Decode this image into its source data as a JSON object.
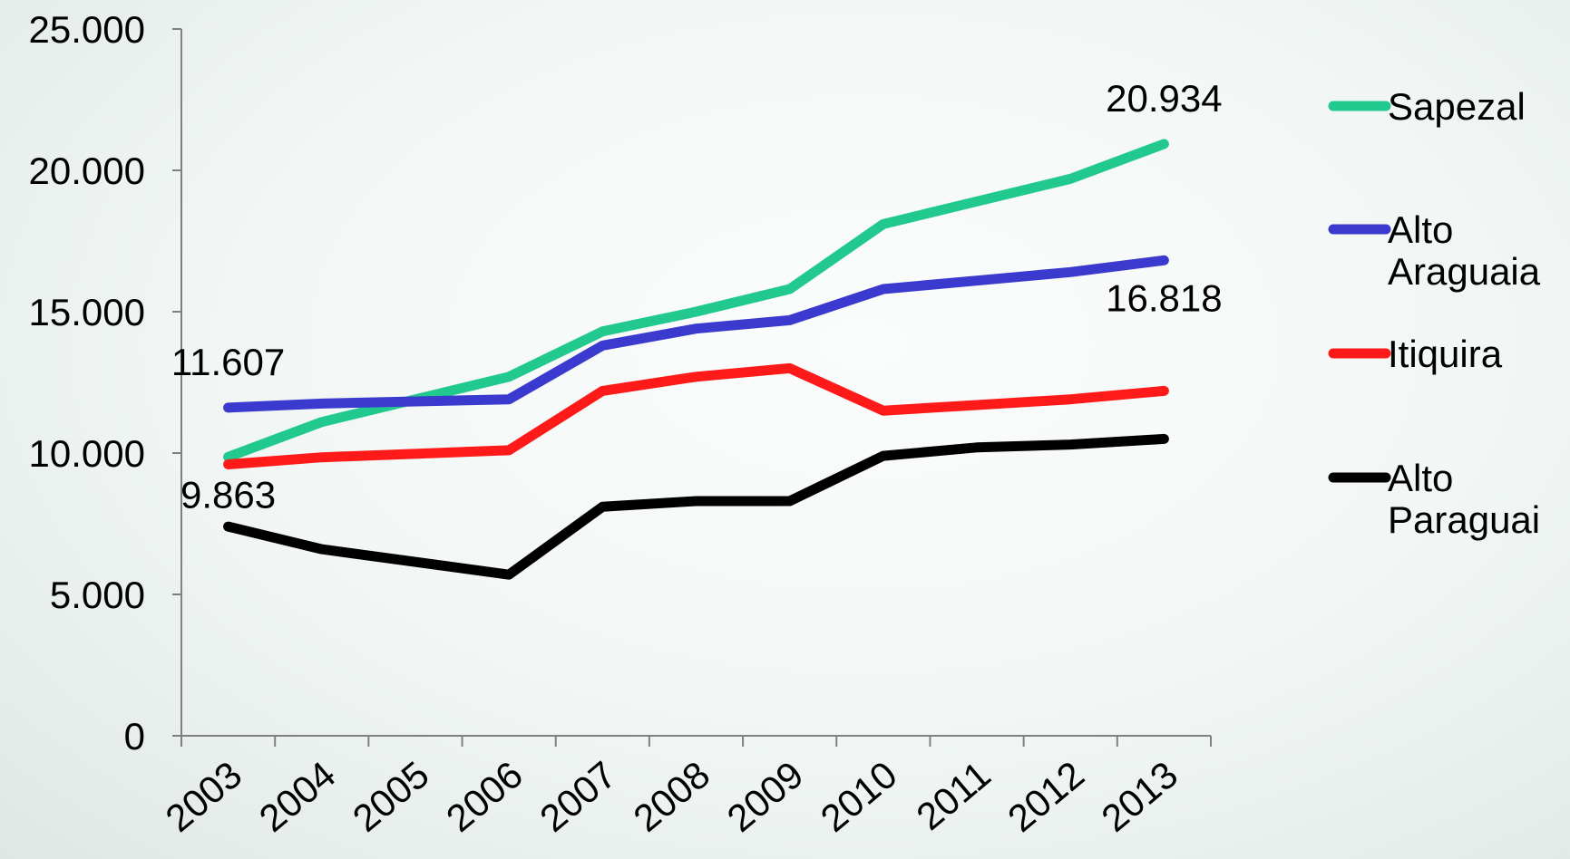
{
  "chart_data": {
    "type": "line",
    "title": "",
    "xlabel": "",
    "ylabel": "",
    "ylim": [
      0,
      25000
    ],
    "yticks": [
      0,
      5000,
      10000,
      15000,
      20000,
      25000
    ],
    "ytick_labels": [
      "0",
      "5.000",
      "10.000",
      "15.000",
      "20.000",
      "25.000"
    ],
    "categories": [
      "2003",
      "2004",
      "2005",
      "2006",
      "2007",
      "2008",
      "2009",
      "2010",
      "2011",
      "2012",
      "2013"
    ],
    "legend_position": "right",
    "grid": false,
    "series": [
      {
        "name": "Sapezal",
        "color": "#22c98e",
        "values": [
          9863,
          11100,
          null,
          12700,
          14300,
          15000,
          15800,
          18100,
          18900,
          19700,
          20934
        ]
      },
      {
        "name": "Alto Araguaia",
        "color": "#3a3acf",
        "values": [
          11607,
          11750,
          null,
          11900,
          13800,
          14400,
          14700,
          15800,
          16100,
          16400,
          16818
        ]
      },
      {
        "name": "Itiquira",
        "color": "#ff1a1a",
        "values": [
          9600,
          9850,
          null,
          10100,
          12200,
          12700,
          13000,
          11500,
          11700,
          11900,
          12200
        ]
      },
      {
        "name": "Alto Paraguai",
        "color": "#000000",
        "values": [
          7400,
          6600,
          null,
          5700,
          8100,
          8300,
          8300,
          9900,
          10200,
          10300,
          10500
        ]
      }
    ],
    "annotations": [
      {
        "text": "20.934",
        "series": 0,
        "index": 10,
        "place": "above"
      },
      {
        "text": "16.818",
        "series": 1,
        "index": 10,
        "place": "below"
      },
      {
        "text": "11.607",
        "series": 1,
        "index": 0,
        "place": "above"
      },
      {
        "text": "9.863",
        "series": 0,
        "index": 0,
        "place": "below"
      }
    ]
  }
}
